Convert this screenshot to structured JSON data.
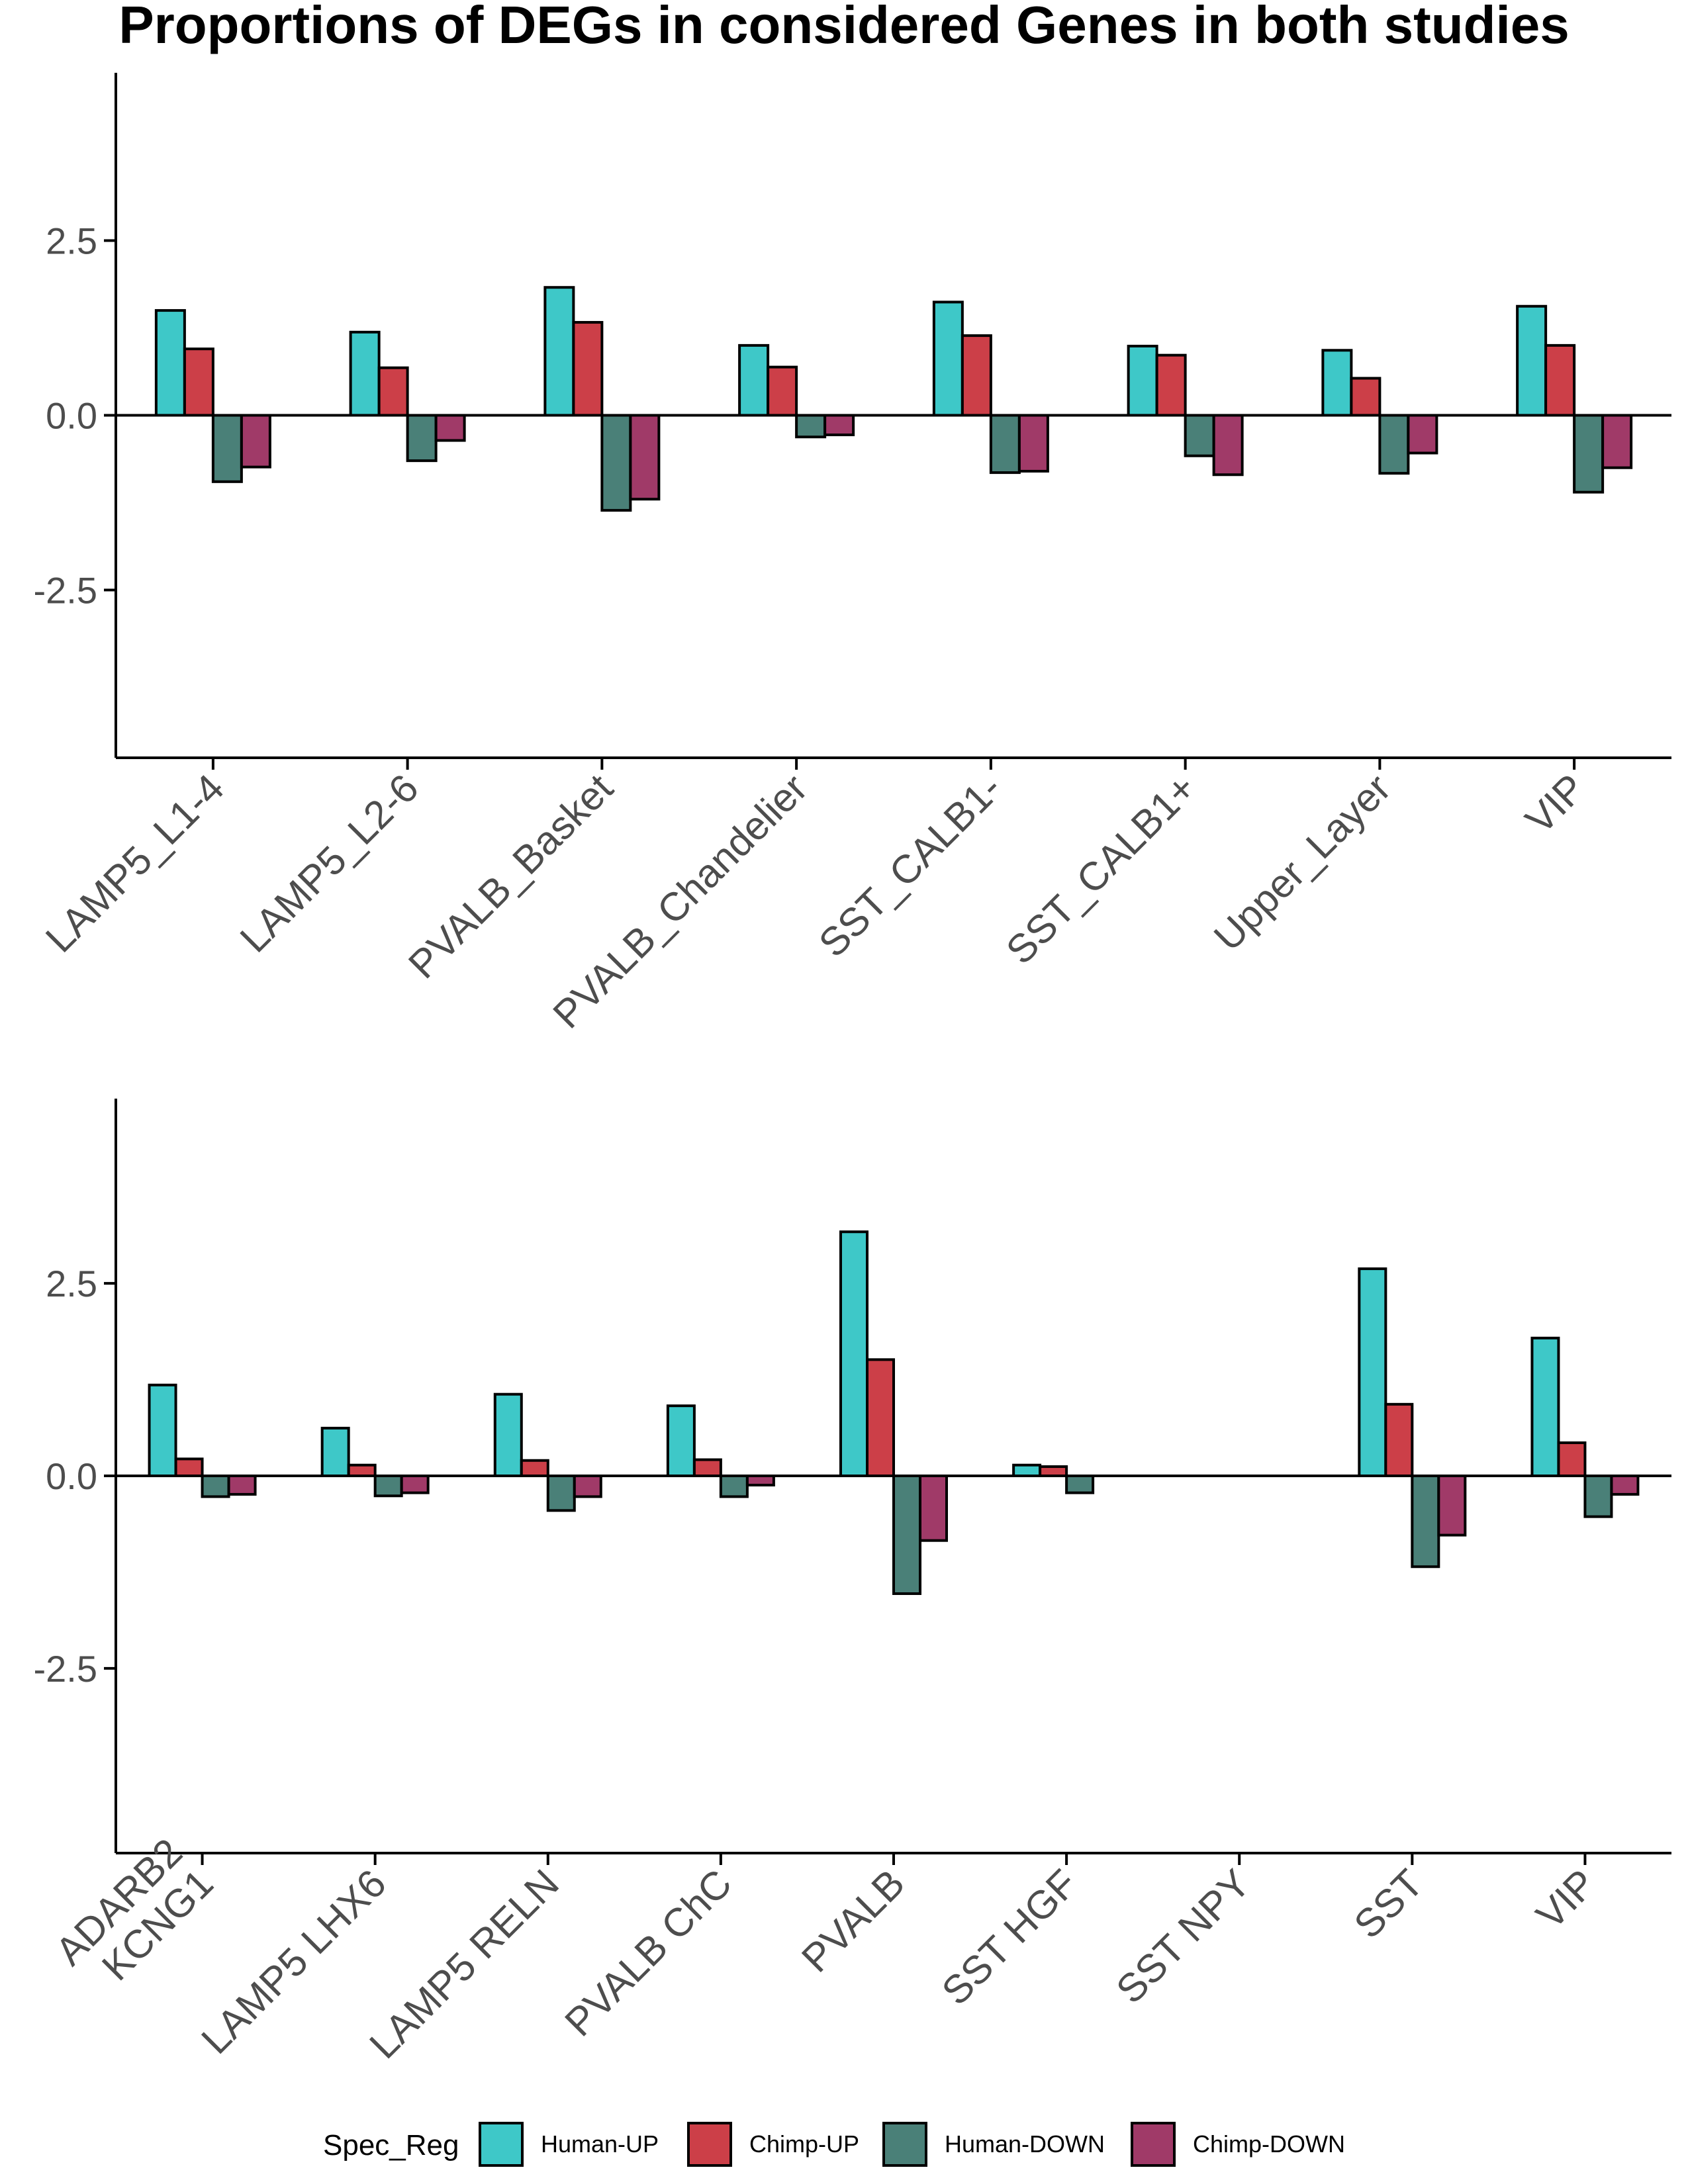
{
  "title": "Proportions of DEGs in considered Genes in both studies",
  "legend": {
    "title": "Spec_Reg",
    "placement": "bottom",
    "items": [
      {
        "label": "Human-UP",
        "color": "#3ec8c8"
      },
      {
        "label": "Chimp-UP",
        "color": "#cc3f48"
      },
      {
        "label": "Human-DOWN",
        "color": "#4a8078"
      },
      {
        "label": "Chimp-DOWN",
        "color": "#a03a68"
      }
    ]
  },
  "chart_data": [
    {
      "type": "bar",
      "title": "",
      "xlabel": "",
      "ylabel": "",
      "ylim": [
        -4.9,
        4.9
      ],
      "yticks": [
        2.5,
        0.0,
        -2.5
      ],
      "ytick_labels": [
        "2.5",
        "0.0",
        "-2.5"
      ],
      "grid": false,
      "categories": [
        "LAMP5_L1-4",
        "LAMP5_L2-6",
        "PVALB_Basket",
        "PVALB_Chandelier",
        "SST_CALB1-",
        "SST_CALB1+",
        "Upper_Layer",
        "VIP"
      ],
      "series": [
        {
          "name": "Human-UP",
          "values": [
            1.5,
            1.19,
            1.83,
            1.0,
            1.62,
            0.99,
            0.93,
            1.56
          ]
        },
        {
          "name": "Chimp-UP",
          "values": [
            0.95,
            0.68,
            1.33,
            0.69,
            1.14,
            0.86,
            0.53,
            1.0
          ]
        },
        {
          "name": "Human-DOWN",
          "values": [
            -0.95,
            -0.65,
            -1.36,
            -0.31,
            -0.82,
            -0.58,
            -0.83,
            -1.1
          ]
        },
        {
          "name": "Chimp-DOWN",
          "values": [
            -0.74,
            -0.36,
            -1.2,
            -0.28,
            -0.8,
            -0.85,
            -0.54,
            -0.75
          ]
        }
      ]
    },
    {
      "type": "bar",
      "title": "",
      "xlabel": "",
      "ylabel": "",
      "ylim": [
        -4.9,
        4.9
      ],
      "yticks": [
        2.5,
        0.0,
        -2.5
      ],
      "ytick_labels": [
        "2.5",
        "0.0",
        "-2.5"
      ],
      "grid": false,
      "categories": [
        "ADARB2\nKCNG1",
        "LAMP5 LHX6",
        "LAMP5 RELN",
        "PVALB ChC",
        "PVALB",
        "SST HGF",
        "SST NPY",
        "SST",
        "VIP"
      ],
      "series": [
        {
          "name": "Human-UP",
          "values": [
            1.18,
            0.62,
            1.06,
            0.91,
            3.17,
            0.14,
            0.0,
            2.69,
            1.79
          ]
        },
        {
          "name": "Chimp-UP",
          "values": [
            0.22,
            0.14,
            0.2,
            0.21,
            1.51,
            0.12,
            0.0,
            0.93,
            0.43
          ]
        },
        {
          "name": "Human-DOWN",
          "values": [
            -0.27,
            -0.26,
            -0.45,
            -0.27,
            -1.53,
            -0.22,
            0.0,
            -1.18,
            -0.53
          ]
        },
        {
          "name": "Chimp-DOWN",
          "values": [
            -0.24,
            -0.22,
            -0.27,
            -0.12,
            -0.84,
            0.0,
            0.0,
            -0.77,
            -0.24
          ]
        }
      ]
    }
  ]
}
